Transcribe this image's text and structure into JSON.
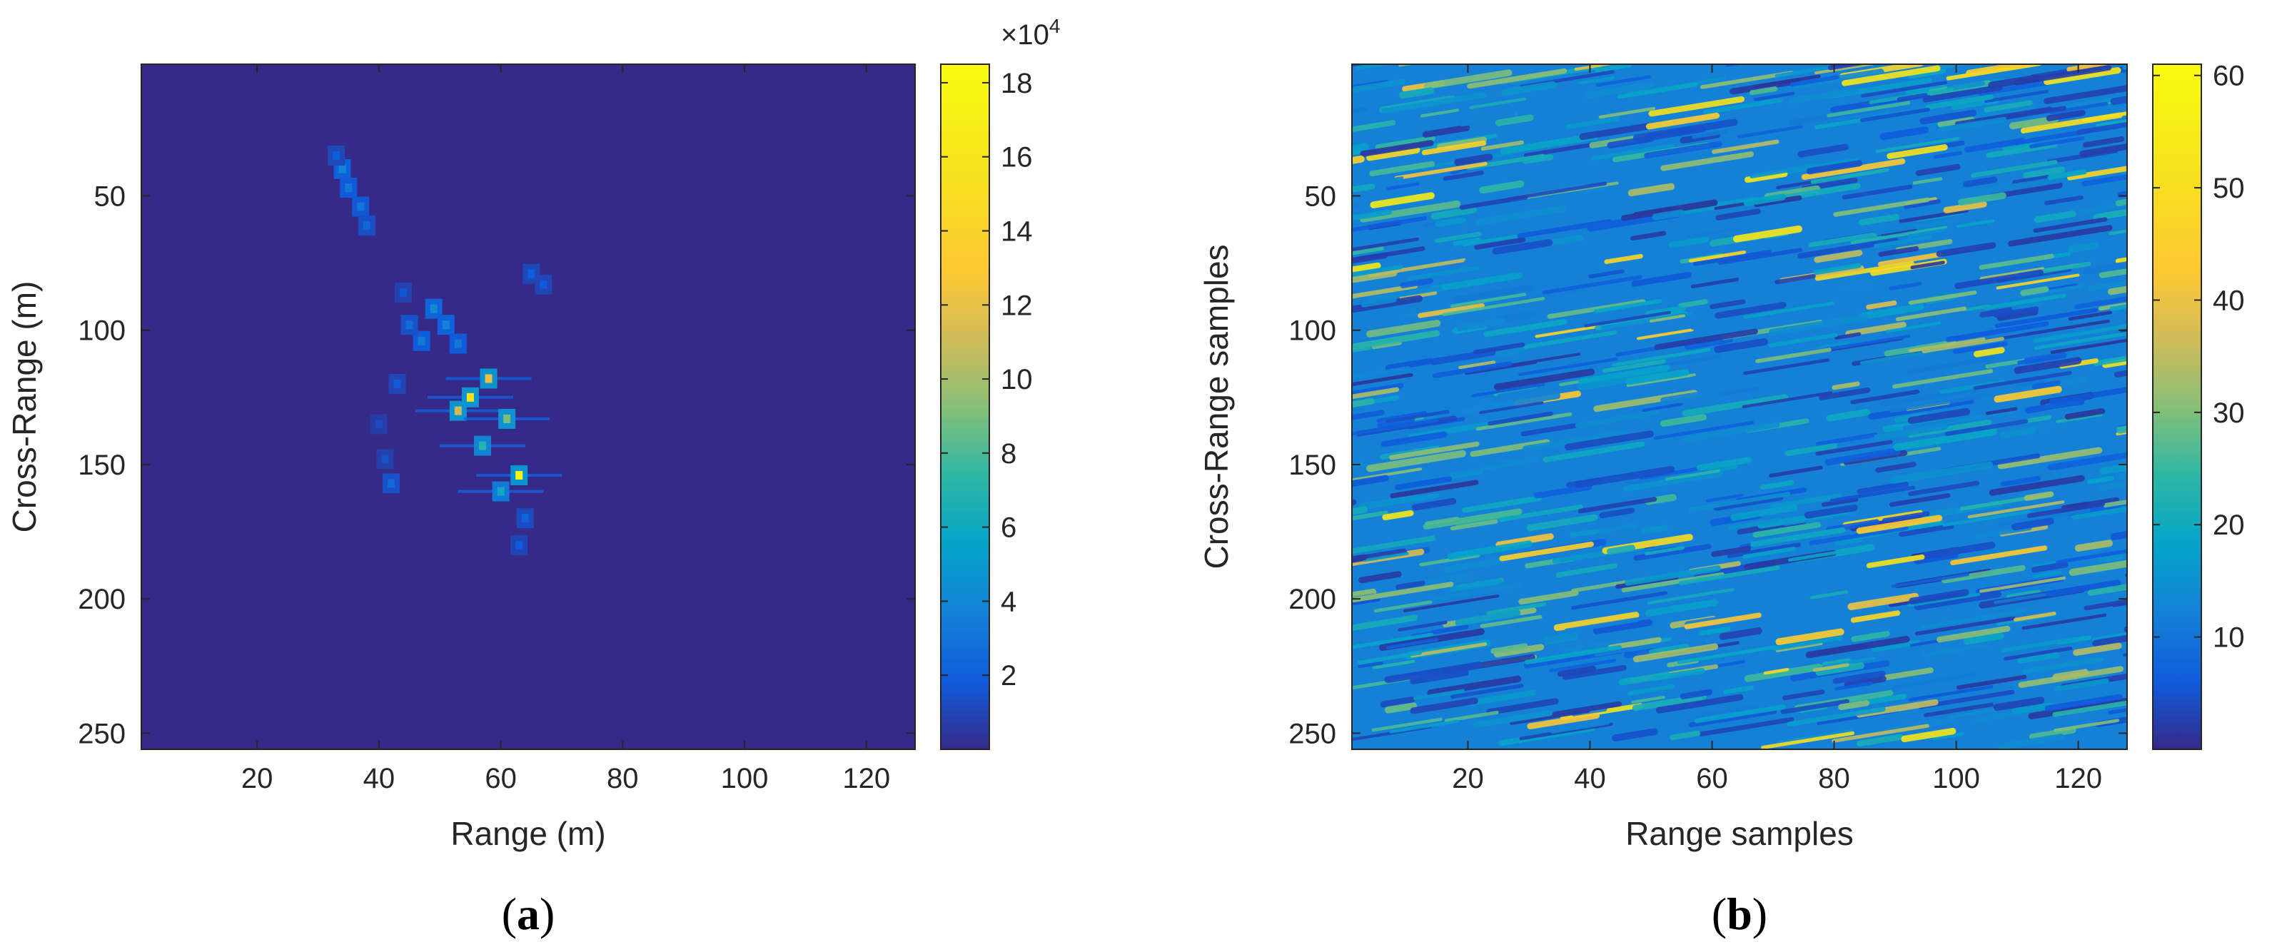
{
  "chart_data": [
    {
      "type": "heatmap",
      "panel_label": "a",
      "xlabel": "Range (m)",
      "ylabel": "Cross-Range (m)",
      "xlim": [
        1,
        128
      ],
      "ylim": [
        1,
        256
      ],
      "y_reversed": true,
      "x_ticks": [
        "20",
        "40",
        "60",
        "80",
        "100",
        "120"
      ],
      "y_ticks": [
        "50",
        "100",
        "150",
        "200",
        "250"
      ],
      "background_value": 0,
      "colormap": "parula",
      "colorbar": {
        "min": 0,
        "max": 185000,
        "exponent_label": "×10",
        "exponent_power": "4",
        "ticks": [
          "2",
          "4",
          "6",
          "8",
          "10",
          "12",
          "14",
          "16",
          "18"
        ],
        "tick_values": [
          2,
          4,
          6,
          8,
          10,
          12,
          14,
          16,
          18
        ]
      },
      "blobs": [
        {
          "x": 34,
          "y": 40,
          "v": 38000
        },
        {
          "x": 35,
          "y": 47,
          "v": 32000
        },
        {
          "x": 37,
          "y": 54,
          "v": 30000
        },
        {
          "x": 38,
          "y": 61,
          "v": 24000
        },
        {
          "x": 33,
          "y": 35,
          "v": 20000
        },
        {
          "x": 49,
          "y": 92,
          "v": 42000
        },
        {
          "x": 51,
          "y": 98,
          "v": 38000
        },
        {
          "x": 53,
          "y": 105,
          "v": 32000
        },
        {
          "x": 47,
          "y": 104,
          "v": 34000
        },
        {
          "x": 45,
          "y": 98,
          "v": 26000
        },
        {
          "x": 58,
          "y": 118,
          "v": 120000
        },
        {
          "x": 55,
          "y": 125,
          "v": 160000
        },
        {
          "x": 53,
          "y": 130,
          "v": 110000
        },
        {
          "x": 61,
          "y": 133,
          "v": 90000
        },
        {
          "x": 57,
          "y": 143,
          "v": 70000
        },
        {
          "x": 63,
          "y": 154,
          "v": 185000
        },
        {
          "x": 60,
          "y": 160,
          "v": 60000
        },
        {
          "x": 42,
          "y": 157,
          "v": 25000
        },
        {
          "x": 43,
          "y": 120,
          "v": 18000
        },
        {
          "x": 65,
          "y": 79,
          "v": 20000
        },
        {
          "x": 44,
          "y": 86,
          "v": 16000
        },
        {
          "x": 67,
          "y": 83,
          "v": 18000
        },
        {
          "x": 64,
          "y": 170,
          "v": 22000
        },
        {
          "x": 63,
          "y": 180,
          "v": 18000
        },
        {
          "x": 41,
          "y": 148,
          "v": 14000
        },
        {
          "x": 40,
          "y": 135,
          "v": 12000
        }
      ]
    },
    {
      "type": "heatmap",
      "panel_label": "b",
      "xlabel": "Range samples",
      "ylabel": "Cross-Range samples",
      "xlim": [
        1,
        128
      ],
      "ylim": [
        1,
        256
      ],
      "y_reversed": true,
      "x_ticks": [
        "20",
        "40",
        "60",
        "80",
        "100",
        "120"
      ],
      "y_ticks": [
        "50",
        "100",
        "150",
        "200",
        "250"
      ],
      "colormap": "parula",
      "colorbar": {
        "min": 0,
        "max": 61,
        "ticks": [
          "10",
          "20",
          "30",
          "40",
          "50",
          "60"
        ],
        "tick_values": [
          10,
          20,
          30,
          40,
          50,
          60
        ]
      },
      "texture": "random speckle with streaks slanted upward to the right",
      "typical_value": 22,
      "peak_value": 60
    }
  ],
  "captions": {
    "a_open": "(",
    "a_letter": "a",
    "a_close": ")",
    "b_open": "(",
    "b_letter": "b",
    "b_close": ")"
  }
}
